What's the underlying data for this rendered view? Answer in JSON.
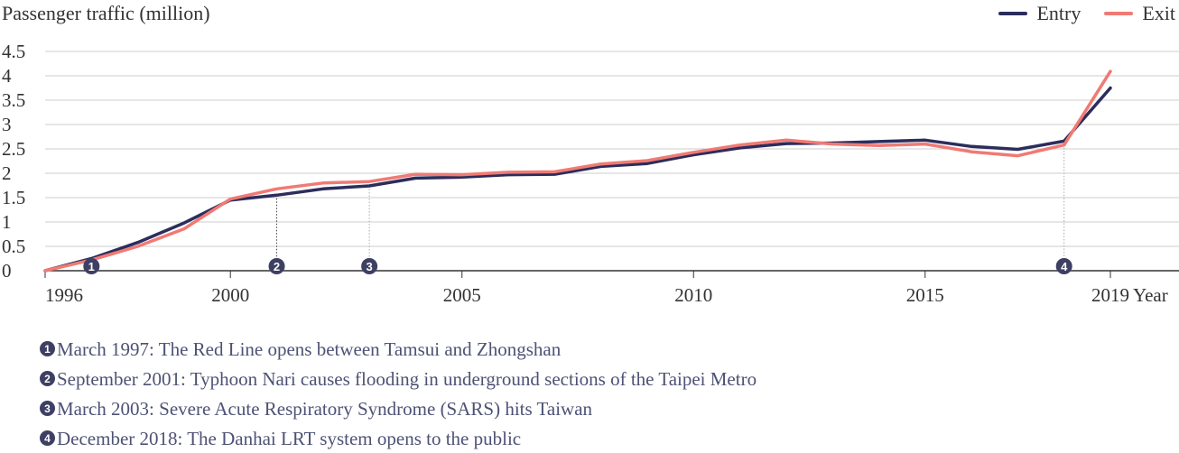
{
  "chart_data": {
    "type": "line",
    "ylabel": "Passenger traffic (million)",
    "xlabel": "Year",
    "x": [
      1996,
      1997,
      1998,
      1999,
      2000,
      2001,
      2002,
      2003,
      2004,
      2005,
      2006,
      2007,
      2008,
      2009,
      2010,
      2011,
      2012,
      2013,
      2014,
      2015,
      2016,
      2017,
      2018,
      2019
    ],
    "xticks": [
      1996,
      2000,
      2005,
      2010,
      2015,
      2019
    ],
    "xlim": [
      1996,
      2019
    ],
    "ylim": [
      0,
      4.5
    ],
    "yticks": [
      0,
      0.5,
      1,
      1.5,
      2,
      2.5,
      3,
      3.5,
      4,
      4.5
    ],
    "series": [
      {
        "name": "Entry",
        "color": "#2b2d5c",
        "values": [
          0,
          0.25,
          0.58,
          0.98,
          1.45,
          1.55,
          1.68,
          1.74,
          1.9,
          1.92,
          1.97,
          1.98,
          2.14,
          2.2,
          2.38,
          2.52,
          2.61,
          2.62,
          2.65,
          2.68,
          2.55,
          2.49,
          2.66,
          3.75
        ]
      },
      {
        "name": "Exit",
        "color": "#f07a74",
        "values": [
          0,
          0.22,
          0.5,
          0.86,
          1.47,
          1.68,
          1.8,
          1.83,
          1.98,
          1.97,
          2.02,
          2.03,
          2.19,
          2.26,
          2.43,
          2.58,
          2.68,
          2.6,
          2.57,
          2.6,
          2.44,
          2.36,
          2.58,
          4.09
        ]
      }
    ],
    "grid": true,
    "legend": "top-right",
    "events": [
      {
        "marker": "1",
        "x": 1997,
        "glyph": "❶",
        "text": "March 1997: The Red Line opens between Tamsui and Zhongshan"
      },
      {
        "marker": "2",
        "x": 2001,
        "glyph": "❷",
        "text": "September 2001: Typhoon Nari causes flooding in underground sections of the Taipei Metro"
      },
      {
        "marker": "3",
        "x": 2003,
        "glyph": "❸",
        "text": "March 2003: Severe Acute Respiratory Syndrome (SARS) hits Taiwan"
      },
      {
        "marker": "4",
        "x": 2018,
        "glyph": "❹",
        "text": "December 2018: The Danhai LRT system opens to the public"
      }
    ]
  },
  "colors": {
    "axis": "#333333",
    "grid": "#cccccc",
    "marker": "#3d3f63",
    "note_text": "#4d5275"
  }
}
